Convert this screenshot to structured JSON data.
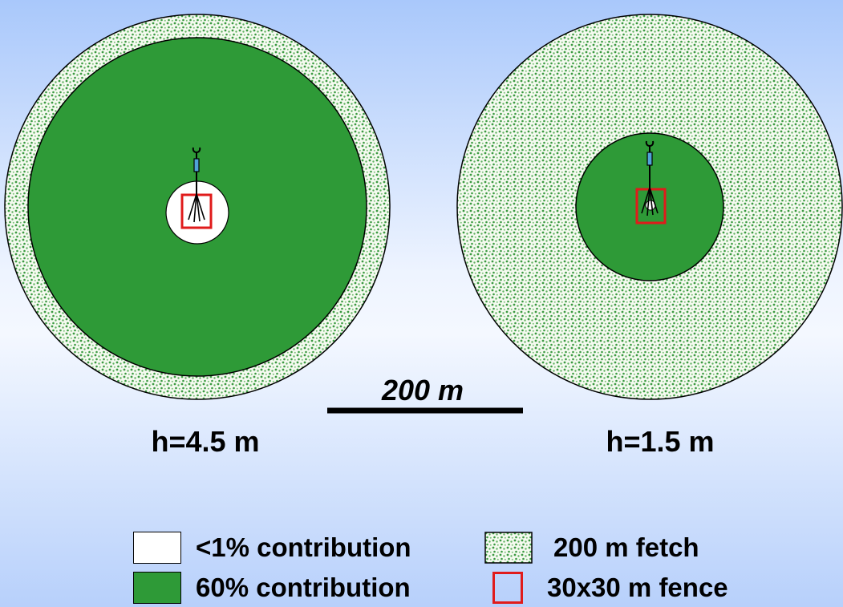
{
  "scale_bar": {
    "label": "200 m"
  },
  "sites": [
    {
      "label": "h=4.5 m"
    },
    {
      "label": "h=1.5 m"
    }
  ],
  "legend": {
    "items": [
      {
        "key": "lt1",
        "label": "<1% contribution"
      },
      {
        "key": "sixty",
        "label": "60% contribution"
      },
      {
        "key": "fetch",
        "label": "200 m fetch"
      },
      {
        "key": "fence",
        "label": "30x30 m fence"
      }
    ]
  },
  "colors": {
    "footprint_green": "#2e9a37",
    "fetch_dots": "#3c9a42",
    "fence_red": "#e01b1b",
    "outline": "#000000",
    "white_zone": "#ffffff"
  },
  "icons": [
    "tower-icon"
  ]
}
